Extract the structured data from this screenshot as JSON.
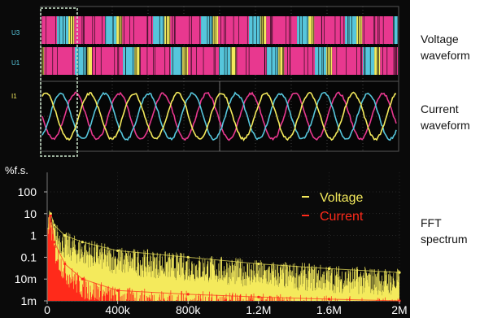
{
  "scope": {
    "channels": {
      "u3": "U3",
      "u1": "U1",
      "i1": "I1"
    },
    "colors": {
      "magenta": "#e8388f",
      "cyan": "#56c6dc",
      "yellow": "#f4ea5c",
      "red": "#ff2a1a",
      "grid": "#6a6a6a",
      "zoom_box": "#cfe9cf"
    }
  },
  "annotations": {
    "voltage": [
      "Voltage",
      "waveform"
    ],
    "current": [
      "Current",
      "waveform"
    ],
    "fft": [
      "FFT",
      "spectrum"
    ]
  },
  "chart_data": {
    "type": "line",
    "title": "",
    "ylabel": "%f.s.",
    "xlabel": "",
    "x_tick_labels": [
      "0",
      "400k",
      "800k",
      "1.2M",
      "1.6M",
      "2M"
    ],
    "x_range": [
      0,
      2000000
    ],
    "y_tick_labels": [
      "100",
      "10",
      "1",
      "0.1",
      "10m",
      "1m"
    ],
    "y_range": [
      0.001,
      100
    ],
    "y_scale": "log",
    "legend_position": "top-right",
    "series": [
      {
        "name": "Voltage",
        "color": "#f4ea5c",
        "x": [
          20000,
          40000,
          100000,
          200000,
          400000,
          800000,
          1200000,
          1600000,
          2000000
        ],
        "values": [
          10,
          3,
          1,
          0.5,
          0.2,
          0.1,
          0.05,
          0.03,
          0.02
        ]
      },
      {
        "name": "Current",
        "color": "#ff2a1a",
        "x": [
          20000,
          40000,
          100000,
          200000,
          400000,
          800000,
          1200000,
          1600000,
          2000000
        ],
        "values": [
          8,
          0.5,
          0.05,
          0.01,
          0.003,
          0.002,
          0.0015,
          0.0012,
          0.001
        ]
      }
    ]
  }
}
